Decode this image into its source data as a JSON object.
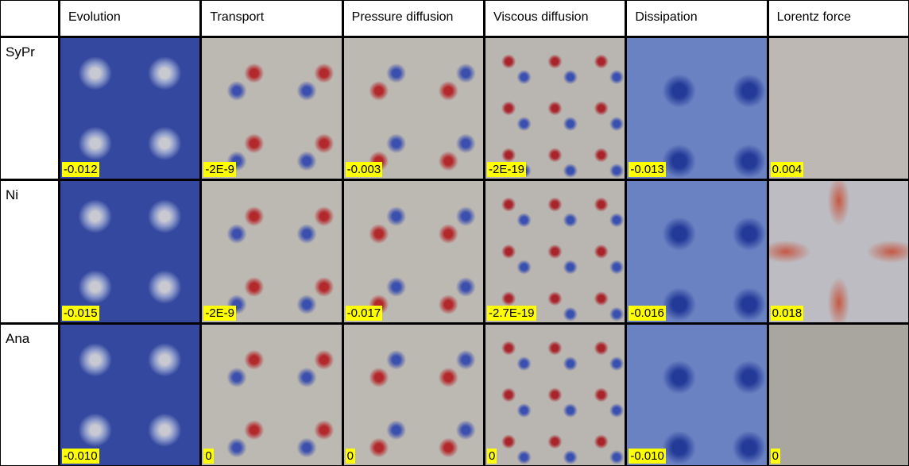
{
  "table": {
    "columns": [
      "Evolution",
      "Transport",
      "Pressure diffusion",
      "Viscous diffusion",
      "Dissipation",
      "Lorentz force"
    ],
    "rows": [
      {
        "label": "SyPr",
        "cells": [
          "-0.012",
          "-2E-9",
          "-0.003",
          "-2E-19",
          "-0.013",
          "0.004"
        ]
      },
      {
        "label": "Ni",
        "cells": [
          "-0.015",
          "-2E-9",
          "-0.017",
          "-2.7E-19",
          "-0.016",
          "0.018"
        ]
      },
      {
        "label": "Ana",
        "cells": [
          "-0.010",
          "0",
          "0",
          "0",
          "-0.010",
          "0"
        ]
      }
    ]
  }
}
